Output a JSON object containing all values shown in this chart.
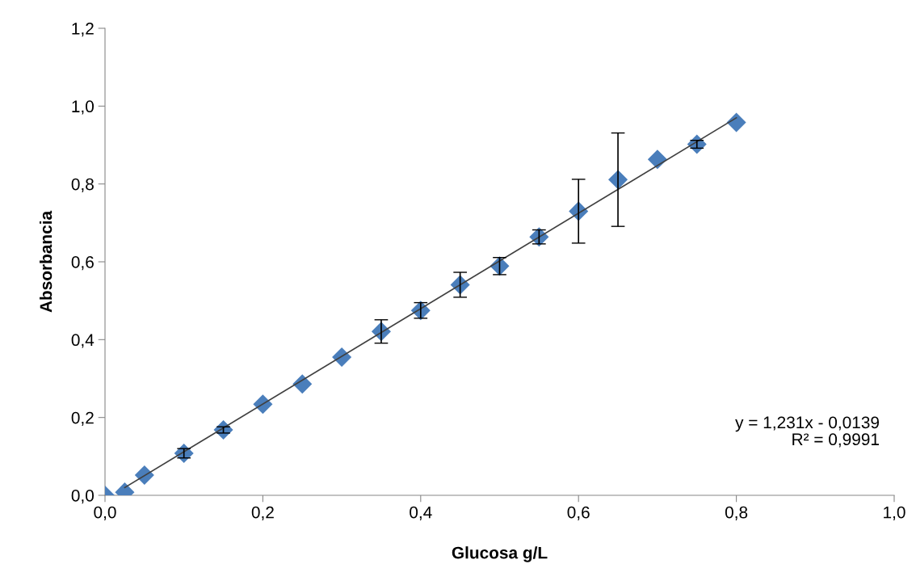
{
  "chart_data": {
    "type": "scatter",
    "xlabel": "Glucosa g/L",
    "ylabel": "Absorbancia",
    "xlim": [
      0,
      1.0
    ],
    "ylim": [
      0,
      1.2
    ],
    "xticks": [
      {
        "value": 0,
        "label": "0,0"
      },
      {
        "value": 0.2,
        "label": "0,2"
      },
      {
        "value": 0.4,
        "label": "0,4"
      },
      {
        "value": 0.6,
        "label": "0,6"
      },
      {
        "value": 0.8,
        "label": "0,8"
      },
      {
        "value": 1.0,
        "label": "1,0"
      }
    ],
    "yticks": [
      {
        "value": 0,
        "label": "0,0"
      },
      {
        "value": 0.2,
        "label": "0,2"
      },
      {
        "value": 0.4,
        "label": "0,4"
      },
      {
        "value": 0.6,
        "label": "0,6"
      },
      {
        "value": 0.8,
        "label": "0,8"
      },
      {
        "value": 1.0,
        "label": "1,0"
      },
      {
        "value": 1.2,
        "label": "1,2"
      }
    ],
    "grid": false,
    "legend": false,
    "series": [
      {
        "color": "#4a7ebb",
        "marker": "diamond",
        "x": [
          0,
          0.025,
          0.05,
          0.1,
          0.15,
          0.2,
          0.25,
          0.3,
          0.35,
          0.4,
          0.45,
          0.5,
          0.55,
          0.6,
          0.65,
          0.7,
          0.75,
          0.8
        ],
        "values": [
          0.0,
          0.008,
          0.052,
          0.108,
          0.168,
          0.234,
          0.286,
          0.355,
          0.421,
          0.475,
          0.541,
          0.589,
          0.664,
          0.73,
          0.811,
          0.863,
          0.902,
          0.958
        ],
        "errors": [
          null,
          null,
          null,
          0.012,
          0.008,
          null,
          null,
          null,
          0.03,
          0.02,
          0.032,
          0.022,
          0.018,
          0.082,
          0.12,
          null,
          0.01,
          null
        ]
      },
      {
        "type": "line",
        "color": "#404040",
        "marker": "none",
        "line_style": "solid",
        "x": [
          0.025,
          0.8
        ],
        "values": [
          0.02,
          0.97
        ]
      }
    ],
    "annotations": [
      {
        "text": "y = 1,231x - 0,0139\nR² = 0,9991"
      }
    ]
  }
}
